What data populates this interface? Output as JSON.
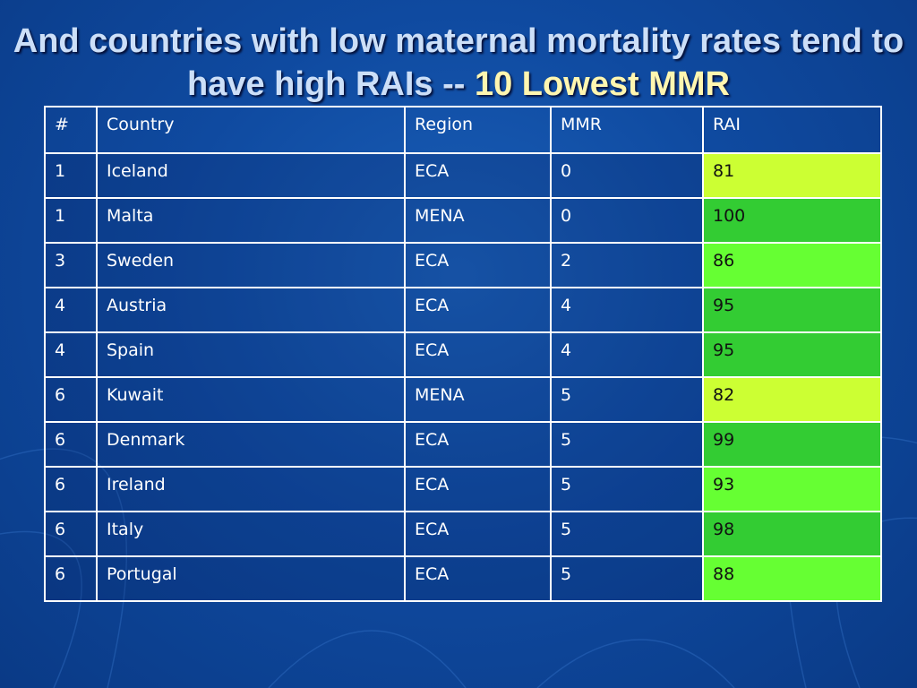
{
  "slide": {
    "title_part1": "And countries with low maternal mortality rates tend to have high RAIs -- ",
    "title_part2": "10 Lowest MMR"
  },
  "table": {
    "headers": [
      "#",
      "Country",
      "Region",
      "MMR",
      "RAI"
    ],
    "rows": [
      {
        "rank": "1",
        "country": "Iceland",
        "region": "ECA",
        "mmr": "0",
        "rai": "81"
      },
      {
        "rank": "1",
        "country": "Malta",
        "region": "MENA",
        "mmr": "0",
        "rai": "100"
      },
      {
        "rank": "3",
        "country": "Sweden",
        "region": "ECA",
        "mmr": "2",
        "rai": "86"
      },
      {
        "rank": "4",
        "country": "Austria",
        "region": "ECA",
        "mmr": "4",
        "rai": "95"
      },
      {
        "rank": "4",
        "country": "Spain",
        "region": "ECA",
        "mmr": "4",
        "rai": "95"
      },
      {
        "rank": "6",
        "country": "Kuwait",
        "region": "MENA",
        "mmr": "5",
        "rai": "82"
      },
      {
        "rank": "6",
        "country": "Denmark",
        "region": "ECA",
        "mmr": "5",
        "rai": "99"
      },
      {
        "rank": "6",
        "country": "Ireland",
        "region": "ECA",
        "mmr": "5",
        "rai": "93"
      },
      {
        "rank": "6",
        "country": "Italy",
        "region": "ECA",
        "mmr": "5",
        "rai": "98"
      },
      {
        "rank": "6",
        "country": "Portugal",
        "region": "ECA",
        "mmr": "5",
        "rai": "88"
      }
    ],
    "rai_colors": [
      "#ccff33",
      "#33cc33",
      "#66ff33",
      "#33cc33",
      "#33cc33",
      "#ccff33",
      "#33cc33",
      "#66ff33",
      "#33cc33",
      "#66ff33"
    ]
  }
}
